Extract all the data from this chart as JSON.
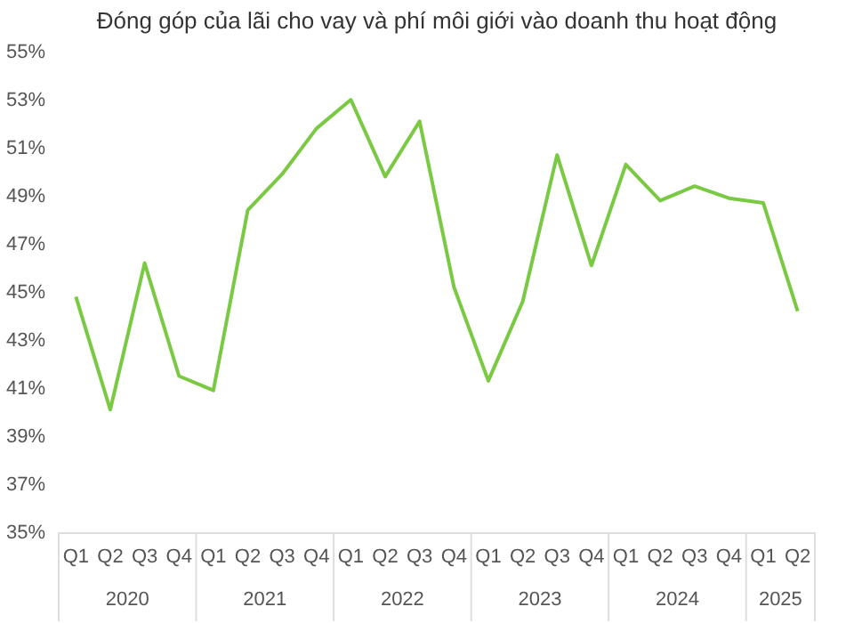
{
  "chart_data": {
    "type": "line",
    "title": "Đóng góp của lãi cho vay và phí môi giới vào doanh thu hoạt động",
    "categories": [
      "Q1",
      "Q2",
      "Q3",
      "Q4",
      "Q1",
      "Q2",
      "Q3",
      "Q4",
      "Q1",
      "Q2",
      "Q3",
      "Q4",
      "Q1",
      "Q2",
      "Q3",
      "Q4",
      "Q1",
      "Q2",
      "Q3",
      "Q4",
      "Q1",
      "Q2"
    ],
    "values": [
      44.8,
      40.1,
      46.2,
      41.5,
      40.9,
      48.4,
      49.9,
      51.8,
      53.0,
      49.8,
      52.1,
      45.2,
      41.3,
      44.6,
      50.7,
      46.1,
      50.3,
      48.8,
      49.4,
      48.9,
      48.7,
      44.2
    ],
    "color": "#7ac943",
    "annotations": [
      "2020",
      "2021",
      "2022",
      "2023",
      "2024",
      "2025"
    ],
    "ylim": [
      35,
      55
    ],
    "yticks": [
      {
        "value": 35,
        "label": "35%"
      },
      {
        "value": 37,
        "label": "37%"
      },
      {
        "value": 39,
        "label": "39%"
      },
      {
        "value": 41,
        "label": "41%"
      },
      {
        "value": 43,
        "label": "43%"
      },
      {
        "value": 45,
        "label": "45%"
      },
      {
        "value": 47,
        "label": "47%"
      },
      {
        "value": 49,
        "label": "49%"
      },
      {
        "value": 51,
        "label": "51%"
      },
      {
        "value": 53,
        "label": "53%"
      },
      {
        "value": 55,
        "label": "55%"
      }
    ],
    "grid": false,
    "marker": "none",
    "line_style": "solid"
  }
}
